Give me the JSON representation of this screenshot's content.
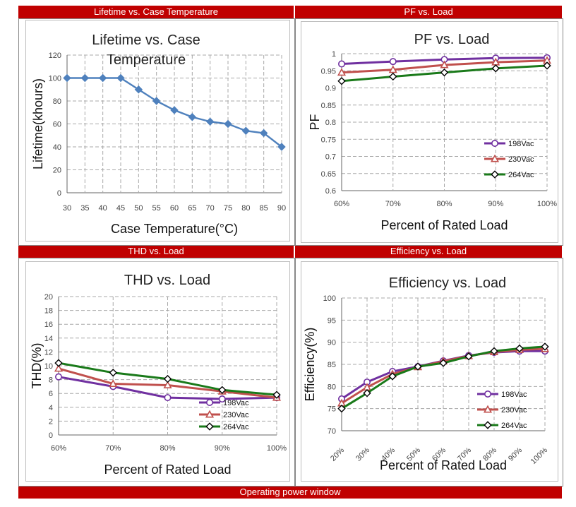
{
  "page": {
    "footer_title": "Operating power window"
  },
  "colors": {
    "header_bar": "#c00000",
    "series_198": "#7030a0",
    "series_230": "#c0504d",
    "series_264": "#1a7a1a",
    "lifetime": "#4f81bd"
  },
  "chart_data": [
    {
      "id": "lifetime",
      "header": "Lifetime vs. Case Temperature",
      "type": "line",
      "title_lines": [
        "Lifetime vs. Case",
        "Temperature"
      ],
      "xlabel": "Case Temperature(°C)",
      "ylabel": "Lifetime(khours)",
      "x_categories": [
        "30",
        "35",
        "40",
        "45",
        "50",
        "55",
        "60",
        "65",
        "70",
        "75",
        "80",
        "85",
        "90"
      ],
      "yticks": [
        "0",
        "20",
        "40",
        "60",
        "80",
        "100",
        "120"
      ],
      "ylim": [
        0,
        120
      ],
      "series": [
        {
          "values": [
            100,
            100,
            100,
            100,
            90,
            80,
            72,
            66,
            62,
            60,
            54,
            52,
            40
          ],
          "color": "#4f81bd",
          "marker": "diamond"
        }
      ],
      "grid": true
    },
    {
      "id": "pf",
      "header": "PF vs. Load",
      "type": "line",
      "title_lines": [
        "PF vs. Load"
      ],
      "xlabel": "Percent of Rated Load",
      "ylabel": "PF",
      "x_categories": [
        "60%",
        "70%",
        "80%",
        "90%",
        "100%"
      ],
      "yticks": [
        "0.6",
        "0.65",
        "0.7",
        "0.75",
        "0.8",
        "0.85",
        "0.9",
        "0.95",
        "1"
      ],
      "ylim": [
        0.6,
        1.0
      ],
      "series": [
        {
          "name": "198Vac",
          "values": [
            0.97,
            0.977,
            0.983,
            0.987,
            0.988
          ],
          "color": "#7030a0",
          "marker": "circle"
        },
        {
          "name": "230Vac",
          "values": [
            0.945,
            0.953,
            0.967,
            0.975,
            0.98
          ],
          "color": "#c0504d",
          "marker": "triangle"
        },
        {
          "name": "264Vac",
          "values": [
            0.92,
            0.933,
            0.945,
            0.957,
            0.965
          ],
          "color": "#1a7a1a",
          "marker": "diamond"
        }
      ],
      "legend": "bottom-right",
      "grid": true
    },
    {
      "id": "thd",
      "header": "THD vs. Load",
      "type": "line",
      "title_lines": [
        "THD vs. Load"
      ],
      "xlabel": "Percent of Rated Load",
      "ylabel": "THD(%)",
      "x_categories": [
        "60%",
        "70%",
        "80%",
        "90%",
        "100%"
      ],
      "yticks": [
        "0",
        "2",
        "4",
        "6",
        "8",
        "10",
        "12",
        "14",
        "16",
        "18",
        "20"
      ],
      "ylim": [
        0,
        20
      ],
      "series": [
        {
          "name": "198Vac",
          "values": [
            8.4,
            7.0,
            5.4,
            5.2,
            5.4
          ],
          "color": "#7030a0",
          "marker": "circle"
        },
        {
          "name": "230Vac",
          "values": [
            9.6,
            7.4,
            7.2,
            6.3,
            5.4
          ],
          "color": "#c0504d",
          "marker": "triangle"
        },
        {
          "name": "264Vac",
          "values": [
            10.4,
            9.0,
            8.1,
            6.5,
            5.8
          ],
          "color": "#1a7a1a",
          "marker": "diamond"
        }
      ],
      "legend": "bottom-right",
      "grid": true
    },
    {
      "id": "eff",
      "header": "Efficiency vs. Load",
      "type": "line",
      "title_lines": [
        "Efficiency vs. Load"
      ],
      "xlabel": "Percent of Rated Load",
      "ylabel": "Efficiency(%)",
      "x_categories": [
        "20%",
        "30%",
        "40%",
        "50%",
        "60%",
        "70%",
        "80%",
        "90%",
        "100%"
      ],
      "yticks": [
        "70",
        "75",
        "80",
        "85",
        "90",
        "95",
        "100"
      ],
      "ylim": [
        70,
        100
      ],
      "rotated_x_labels": true,
      "series": [
        {
          "name": "198Vac",
          "values": [
            77.2,
            81.0,
            83.4,
            84.5,
            85.8,
            87.0,
            87.7,
            88.0,
            88.0
          ],
          "color": "#7030a0",
          "marker": "circle"
        },
        {
          "name": "230Vac",
          "values": [
            76.2,
            79.8,
            82.8,
            84.4,
            85.7,
            86.9,
            87.8,
            88.3,
            88.5
          ],
          "color": "#c0504d",
          "marker": "triangle"
        },
        {
          "name": "264Vac",
          "values": [
            75.0,
            78.5,
            82.3,
            84.5,
            85.3,
            86.8,
            88.0,
            88.6,
            89.0
          ],
          "color": "#1a7a1a",
          "marker": "diamond"
        }
      ],
      "legend": "bottom-right",
      "grid": true
    }
  ]
}
